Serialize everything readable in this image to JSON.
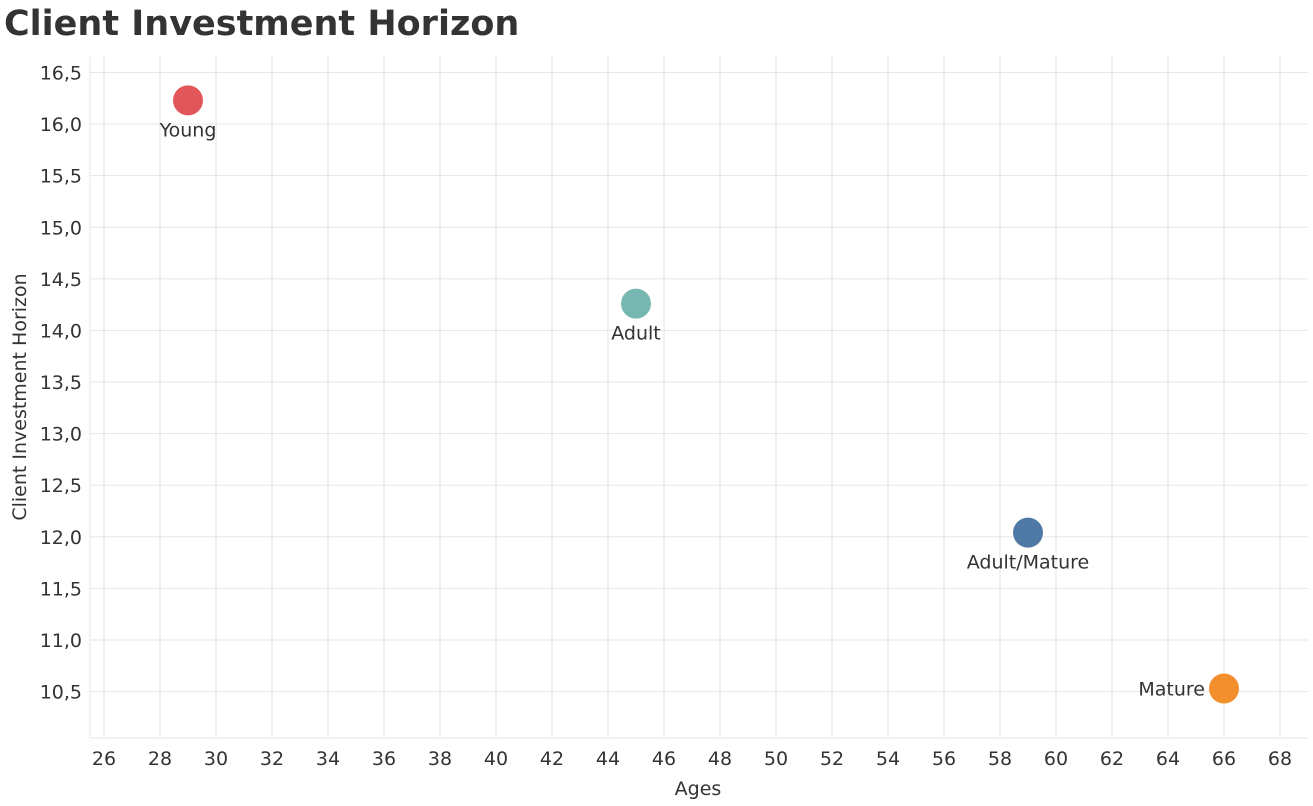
{
  "chart_data": {
    "type": "scatter",
    "title": "Client Investment Horizon",
    "xlabel": "Ages",
    "ylabel": "Client Investment Horizon",
    "xlim": [
      25.5,
      69
    ],
    "ylim": [
      10.05,
      16.65
    ],
    "x_ticks": [
      "26",
      "28",
      "30",
      "32",
      "34",
      "36",
      "38",
      "40",
      "42",
      "44",
      "46",
      "48",
      "50",
      "52",
      "54",
      "56",
      "58",
      "60",
      "62",
      "64",
      "66",
      "68"
    ],
    "y_ticks": [
      "10,5",
      "11,0",
      "11,5",
      "12,0",
      "12,5",
      "13,0",
      "13,5",
      "14,0",
      "14,5",
      "15,0",
      "15,5",
      "16,0",
      "16,5"
    ],
    "grid": true,
    "points": [
      {
        "label": "Young",
        "x": 29,
        "y": 16.23,
        "color": "#e15759",
        "label_pos": "below"
      },
      {
        "label": "Adult",
        "x": 45,
        "y": 14.26,
        "color": "#76b7b2",
        "label_pos": "below"
      },
      {
        "label": "Adult/Mature",
        "x": 59,
        "y": 12.04,
        "color": "#4e79a7",
        "label_pos": "below"
      },
      {
        "label": "Mature",
        "x": 66,
        "y": 10.53,
        "color": "#f28e2b",
        "label_pos": "left"
      }
    ]
  }
}
